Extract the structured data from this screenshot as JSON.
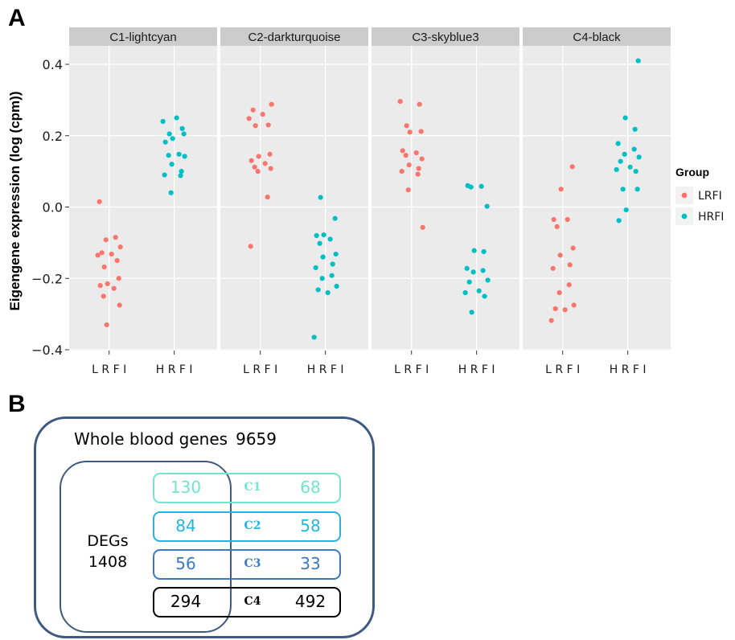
{
  "panel_a_letter": "A",
  "panel_b_letter": "B",
  "colors": {
    "LRFI": "#f8766d",
    "HRFI": "#00bfc4",
    "panel_bg": "#ebebeb",
    "strip_bg": "#cccccc",
    "grid": "#ffffff"
  },
  "chart_data": {
    "type": "scatter",
    "ylabel": "Eigengene expression (log (cpm))",
    "ylim": [
      -0.42,
      0.44
    ],
    "y_ticks": [
      -0.4,
      -0.2,
      0.0,
      0.2,
      0.4
    ],
    "y_tick_labels": [
      "−0.4",
      "−0.2",
      "0.0",
      "0.2",
      "0.4"
    ],
    "categories": [
      "LRFI",
      "HRFI"
    ],
    "category_labels": [
      "L R F I",
      "H R F I"
    ],
    "grid": true,
    "legend": {
      "title": "Group",
      "position": "right",
      "entries": [
        "LRFI",
        "HRFI"
      ]
    },
    "facets": [
      {
        "title": "C1-lightcyan",
        "LRFI": [
          0.015,
          -0.085,
          -0.092,
          -0.112,
          -0.128,
          -0.132,
          -0.135,
          -0.15,
          -0.168,
          -0.2,
          -0.215,
          -0.22,
          -0.228,
          -0.25,
          -0.275,
          -0.33
        ],
        "HRFI": [
          0.25,
          0.24,
          0.22,
          0.205,
          0.205,
          0.192,
          0.182,
          0.148,
          0.145,
          0.142,
          0.12,
          0.1,
          0.09,
          0.088,
          0.04
        ]
      },
      {
        "title": "C2-darkturquoise",
        "LRFI": [
          0.288,
          0.272,
          0.26,
          0.248,
          0.23,
          0.228,
          0.148,
          0.142,
          0.13,
          0.122,
          0.112,
          0.108,
          0.1,
          0.028,
          -0.11
        ],
        "HRFI": [
          0.027,
          -0.032,
          -0.078,
          -0.08,
          -0.09,
          -0.102,
          -0.132,
          -0.14,
          -0.16,
          -0.17,
          -0.192,
          -0.2,
          -0.222,
          -0.232,
          -0.24,
          -0.365
        ]
      },
      {
        "title": "C3-skyblue3",
        "LRFI": [
          0.296,
          0.288,
          0.228,
          0.212,
          0.21,
          0.158,
          0.152,
          0.145,
          0.135,
          0.118,
          0.108,
          0.1,
          0.092,
          0.048,
          -0.057
        ],
        "HRFI": [
          0.06,
          0.058,
          0.056,
          0.002,
          -0.122,
          -0.125,
          -0.172,
          -0.178,
          -0.182,
          -0.205,
          -0.21,
          -0.235,
          -0.24,
          -0.25,
          -0.295
        ]
      },
      {
        "title": "C4-black",
        "LRFI": [
          0.113,
          0.05,
          -0.035,
          -0.035,
          -0.055,
          -0.115,
          -0.135,
          -0.162,
          -0.172,
          -0.218,
          -0.24,
          -0.275,
          -0.285,
          -0.288,
          -0.318
        ],
        "HRFI": [
          0.41,
          0.25,
          0.218,
          0.178,
          0.162,
          0.148,
          0.14,
          0.128,
          0.112,
          0.105,
          0.1,
          0.05,
          0.05,
          -0.008,
          -0.038
        ]
      }
    ]
  },
  "diagram": {
    "whole_label": "Whole blood genes",
    "whole_count": "9659",
    "deg_label": "DEGs",
    "deg_count": "1408",
    "modules": [
      {
        "name": "C1",
        "left": "130",
        "right": "68",
        "color": "#6ee6cf"
      },
      {
        "name": "C2",
        "left": "84",
        "right": "58",
        "color": "#1fb6e3"
      },
      {
        "name": "C3",
        "left": "56",
        "right": "33",
        "color": "#3c78c0"
      },
      {
        "name": "C4",
        "left": "294",
        "right": "492",
        "color": "#000000"
      }
    ]
  }
}
